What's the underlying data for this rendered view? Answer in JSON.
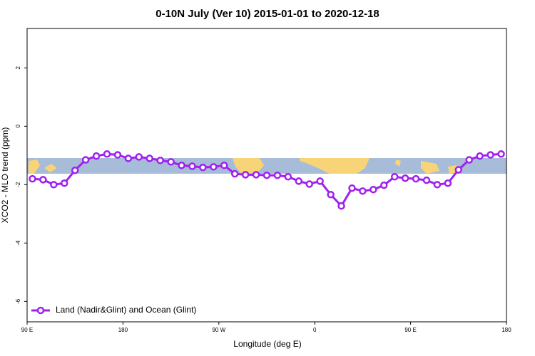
{
  "chart_data": {
    "type": "line",
    "title": "0-10N July (Ver 10)   2015-01-01 to 2020-12-18",
    "x_label": "Longitude (deg E)",
    "y_label": "XCO2 - MLO trend (ppm)",
    "x": [
      95,
      105,
      115,
      125,
      135,
      145,
      155,
      165,
      175,
      185,
      195,
      205,
      215,
      225,
      235,
      245,
      255,
      265,
      275,
      285,
      295,
      305,
      315,
      325,
      335,
      345,
      355,
      365,
      375,
      385,
      395,
      405,
      415,
      425,
      435,
      445,
      455,
      465,
      475,
      485,
      495,
      505,
      515,
      525,
      535
    ],
    "series": [
      {
        "name": "Land (Nadir&Glint) and Ocean (Glint)",
        "color": "#a020f0",
        "values": [
          -1.8,
          -1.83,
          -2.0,
          -1.95,
          -1.51,
          -1.15,
          -1.02,
          -0.95,
          -0.98,
          -1.1,
          -1.05,
          -1.1,
          -1.17,
          -1.22,
          -1.34,
          -1.37,
          -1.41,
          -1.39,
          -1.34,
          -1.63,
          -1.66,
          -1.66,
          -1.68,
          -1.68,
          -1.73,
          -1.88,
          -1.98,
          -1.88,
          -2.34,
          -2.73,
          -2.12,
          -2.22,
          -2.17,
          -2.02,
          -1.73,
          -1.78,
          -1.8,
          -1.85,
          -2.0,
          -1.95,
          -1.49,
          -1.15,
          -1.02,
          -0.98,
          -0.95
        ]
      }
    ],
    "xlim": [
      90,
      540
    ],
    "xticks": [
      {
        "value": 90,
        "label": "90 E"
      },
      180,
      {
        "value": 270,
        "label": "90 W"
      },
      {
        "value": 360,
        "label": "0"
      },
      {
        "value": 450,
        "label": "90 E"
      },
      {
        "value": 540,
        "label": "180"
      }
    ],
    "ylim": [
      -6.7,
      3.35
    ],
    "yticks": [
      2,
      0,
      -2,
      -4,
      -6
    ],
    "legend": "bottom-left",
    "grid": false
  }
}
